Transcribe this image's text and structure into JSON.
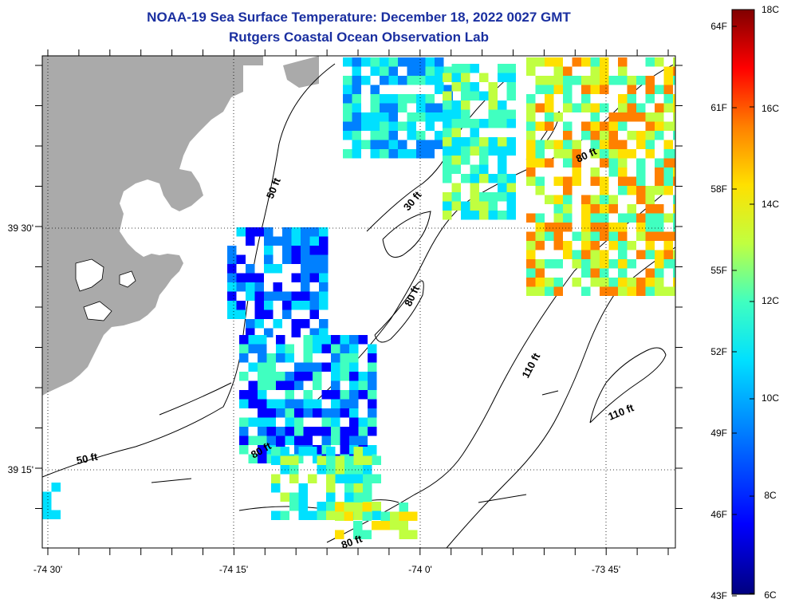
{
  "header": {
    "title": "NOAA-19 Sea Surface Temperature:  December 18, 2022 0027 GMT",
    "subtitle": "Rutgers Coastal Ocean Observation Lab"
  },
  "axes": {
    "x_ticks": [
      "-74 30'",
      "-74 15'",
      "-74 0'",
      "-73 45'"
    ],
    "y_ticks": [
      "39 30'",
      "39 15'"
    ]
  },
  "contours": {
    "labels": [
      "50 ft",
      "50 ft",
      "30 ft",
      "80 ft",
      "80 ft",
      "80 ft",
      "80 ft",
      "110 ft",
      "110 ft"
    ]
  },
  "colorbar": {
    "fahrenheit": [
      "64F",
      "61F",
      "58F",
      "55F",
      "52F",
      "49F",
      "46F",
      "43F"
    ],
    "celsius": [
      "18C",
      "16C",
      "14C",
      "12C",
      "10C",
      "8C",
      "6C"
    ],
    "colors": [
      "#00007f",
      "#0000ff",
      "#0080ff",
      "#00e0ff",
      "#40ffc0",
      "#c0ff40",
      "#ffe000",
      "#ff8000",
      "#ff0000",
      "#800000"
    ],
    "range_c": [
      6,
      18
    ]
  },
  "colors": {
    "land": "#aaaaaa",
    "title": "#1a2fa0"
  }
}
